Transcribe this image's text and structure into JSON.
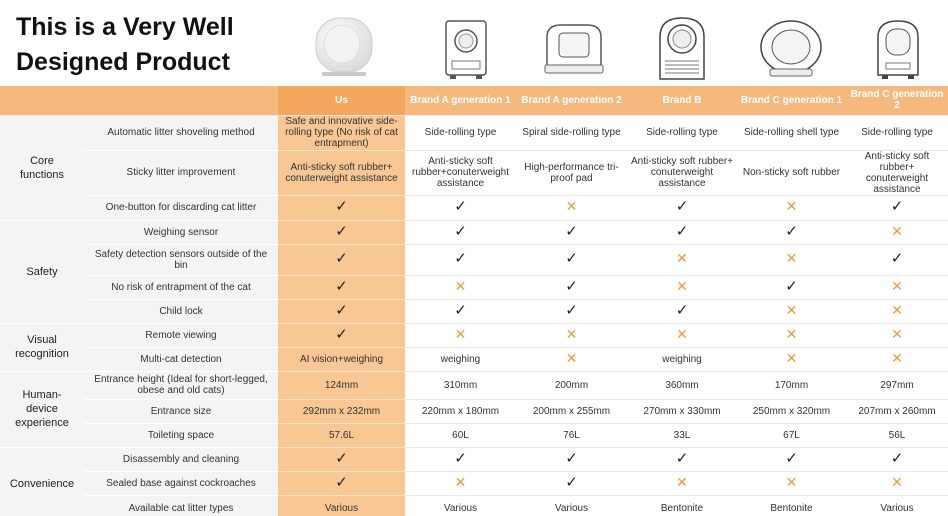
{
  "title_lines": [
    "This is a Very Well",
    "Designed Product"
  ],
  "columns": [
    "Us",
    "Brand A generation 1",
    "Brand A generation 2",
    "Brand B",
    "Brand C generation 1",
    "Brand C generation 2"
  ],
  "sections": [
    {
      "category": [
        "Core",
        "functions"
      ],
      "rows": [
        {
          "feature": "Automatic litter shoveling method",
          "cells": [
            "Safe and innovative side-rolling type (No risk of cat entrapment)",
            "Side-rolling type",
            "Spiral side-rolling type",
            "Side-rolling type",
            "Side-rolling shell type",
            "Side-rolling type"
          ]
        },
        {
          "feature": "Sticky litter improvement",
          "cells": [
            "Anti-sticky soft rubber+ conuterweight assistance",
            "Anti-sticky soft rubber+conuterweight assistance",
            "High-performance tri-proof pad",
            "Anti-sticky soft rubber+ conuterweight assistance",
            "Non-sticky soft rubber",
            "Anti-sticky soft rubber+ conuterweight assistance"
          ]
        },
        {
          "feature": "One-button for discarding cat litter",
          "cells": [
            "✓",
            "✓",
            "×",
            "✓",
            "×",
            "✓"
          ]
        }
      ]
    },
    {
      "category": [
        "Safety"
      ],
      "rows": [
        {
          "feature": "Weighing sensor",
          "cells": [
            "✓",
            "✓",
            "✓",
            "✓",
            "✓",
            "×"
          ]
        },
        {
          "feature": "Safety detection sensors outside of the bin",
          "cells": [
            "✓",
            "✓",
            "✓",
            "×",
            "×",
            "✓"
          ]
        },
        {
          "feature": "No risk of entrapment of the cat",
          "cells": [
            "✓",
            "×",
            "✓",
            "×",
            "✓",
            "×"
          ]
        },
        {
          "feature": "Child lock",
          "cells": [
            "✓",
            "✓",
            "✓",
            "✓",
            "×",
            "×"
          ]
        }
      ]
    },
    {
      "category": [
        "Visual",
        "recognition"
      ],
      "rows": [
        {
          "feature": "Remote viewing",
          "cells": [
            "✓",
            "×",
            "×",
            "×",
            "×",
            "×"
          ]
        },
        {
          "feature": "Multi-cat detection",
          "cells": [
            "AI vision+weighing",
            "weighing",
            "×",
            "weighing",
            "×",
            "×"
          ]
        }
      ]
    },
    {
      "category": [
        "Human-",
        "device",
        "experience"
      ],
      "rows": [
        {
          "feature": "Entrance height (Ideal for short-legged, obese and old cats)",
          "cells": [
            "124mm",
            "310mm",
            "200mm",
            "360mm",
            "170mm",
            "297mm"
          ]
        },
        {
          "feature": "Entrance size",
          "cells": [
            "292mm x 232mm",
            "220mm x 180mm",
            "200mm x 255mm",
            "270mm x 330mm",
            "250mm x 320mm",
            "207mm x 260mm"
          ]
        },
        {
          "feature": "Toileting space",
          "cells": [
            "57.6L",
            "60L",
            "76L",
            "33L",
            "67L",
            "56L"
          ]
        }
      ]
    },
    {
      "category": [
        "Convenience"
      ],
      "rows": [
        {
          "feature": "Disassembly and cleaning",
          "cells": [
            "✓",
            "✓",
            "✓",
            "✓",
            "✓",
            "✓"
          ]
        },
        {
          "feature": "Sealed base against cockroaches",
          "cells": [
            "✓",
            "×",
            "✓",
            "×",
            "×",
            "×"
          ]
        },
        {
          "feature": "Available cat litter types",
          "cells": [
            "Various",
            "Various",
            "Various",
            "Bentonite",
            "Bentonite",
            "Various"
          ]
        }
      ]
    }
  ],
  "colors": {
    "header": "#f5b97e",
    "us_column": "#f8c793",
    "cross": "#ef9a3c",
    "label_bg": "#f4f4f4"
  }
}
